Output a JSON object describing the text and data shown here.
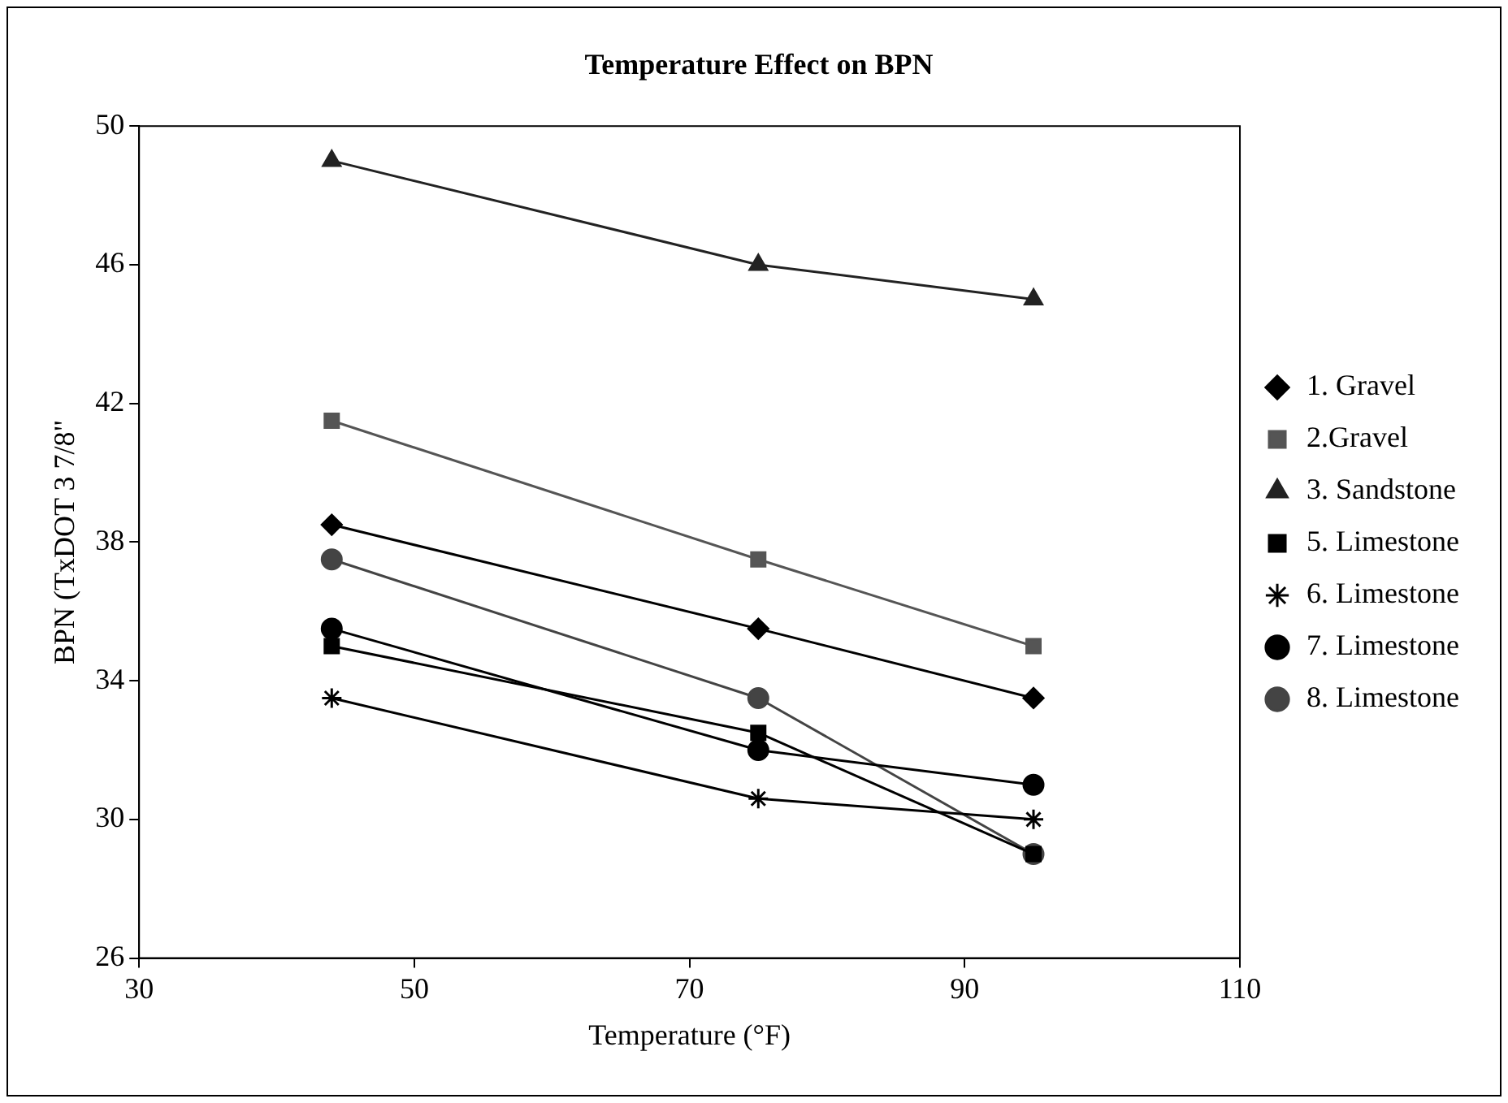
{
  "chart_data": {
    "type": "line",
    "title": "Temperature Effect on BPN",
    "xlabel": "Temperature (°F)",
    "ylabel": "BPN (TxDOT 3 7/8\"",
    "x": [
      44,
      75,
      95
    ],
    "xlim": [
      30,
      110
    ],
    "xticks": [
      30,
      50,
      70,
      90,
      110
    ],
    "ylim": [
      26,
      50
    ],
    "yticks": [
      26,
      30,
      34,
      38,
      42,
      46,
      50
    ],
    "grid": false,
    "legend": "right",
    "series": [
      {
        "name": "1. Gravel",
        "color": "#000000",
        "marker": "diamond",
        "values": [
          38.5,
          35.5,
          33.5
        ]
      },
      {
        "name": "2.Gravel",
        "color": "#555555",
        "marker": "square",
        "values": [
          41.5,
          37.5,
          35
        ]
      },
      {
        "name": "3. Sandstone",
        "color": "#222222",
        "marker": "triangle",
        "values": [
          49,
          46,
          45
        ]
      },
      {
        "name": "5. Limestone",
        "color": "#000000",
        "marker": "square",
        "values": [
          35,
          32.5,
          29
        ]
      },
      {
        "name": "6. Limestone",
        "color": "#000000",
        "marker": "cross",
        "values": [
          33.5,
          30.6,
          30
        ]
      },
      {
        "name": "7. Limestone",
        "color": "#000000",
        "marker": "circle",
        "values": [
          35.5,
          32,
          31
        ]
      },
      {
        "name": "8. Limestone",
        "color": "#444444",
        "marker": "circle",
        "values": [
          37.5,
          33.5,
          29
        ]
      }
    ]
  }
}
